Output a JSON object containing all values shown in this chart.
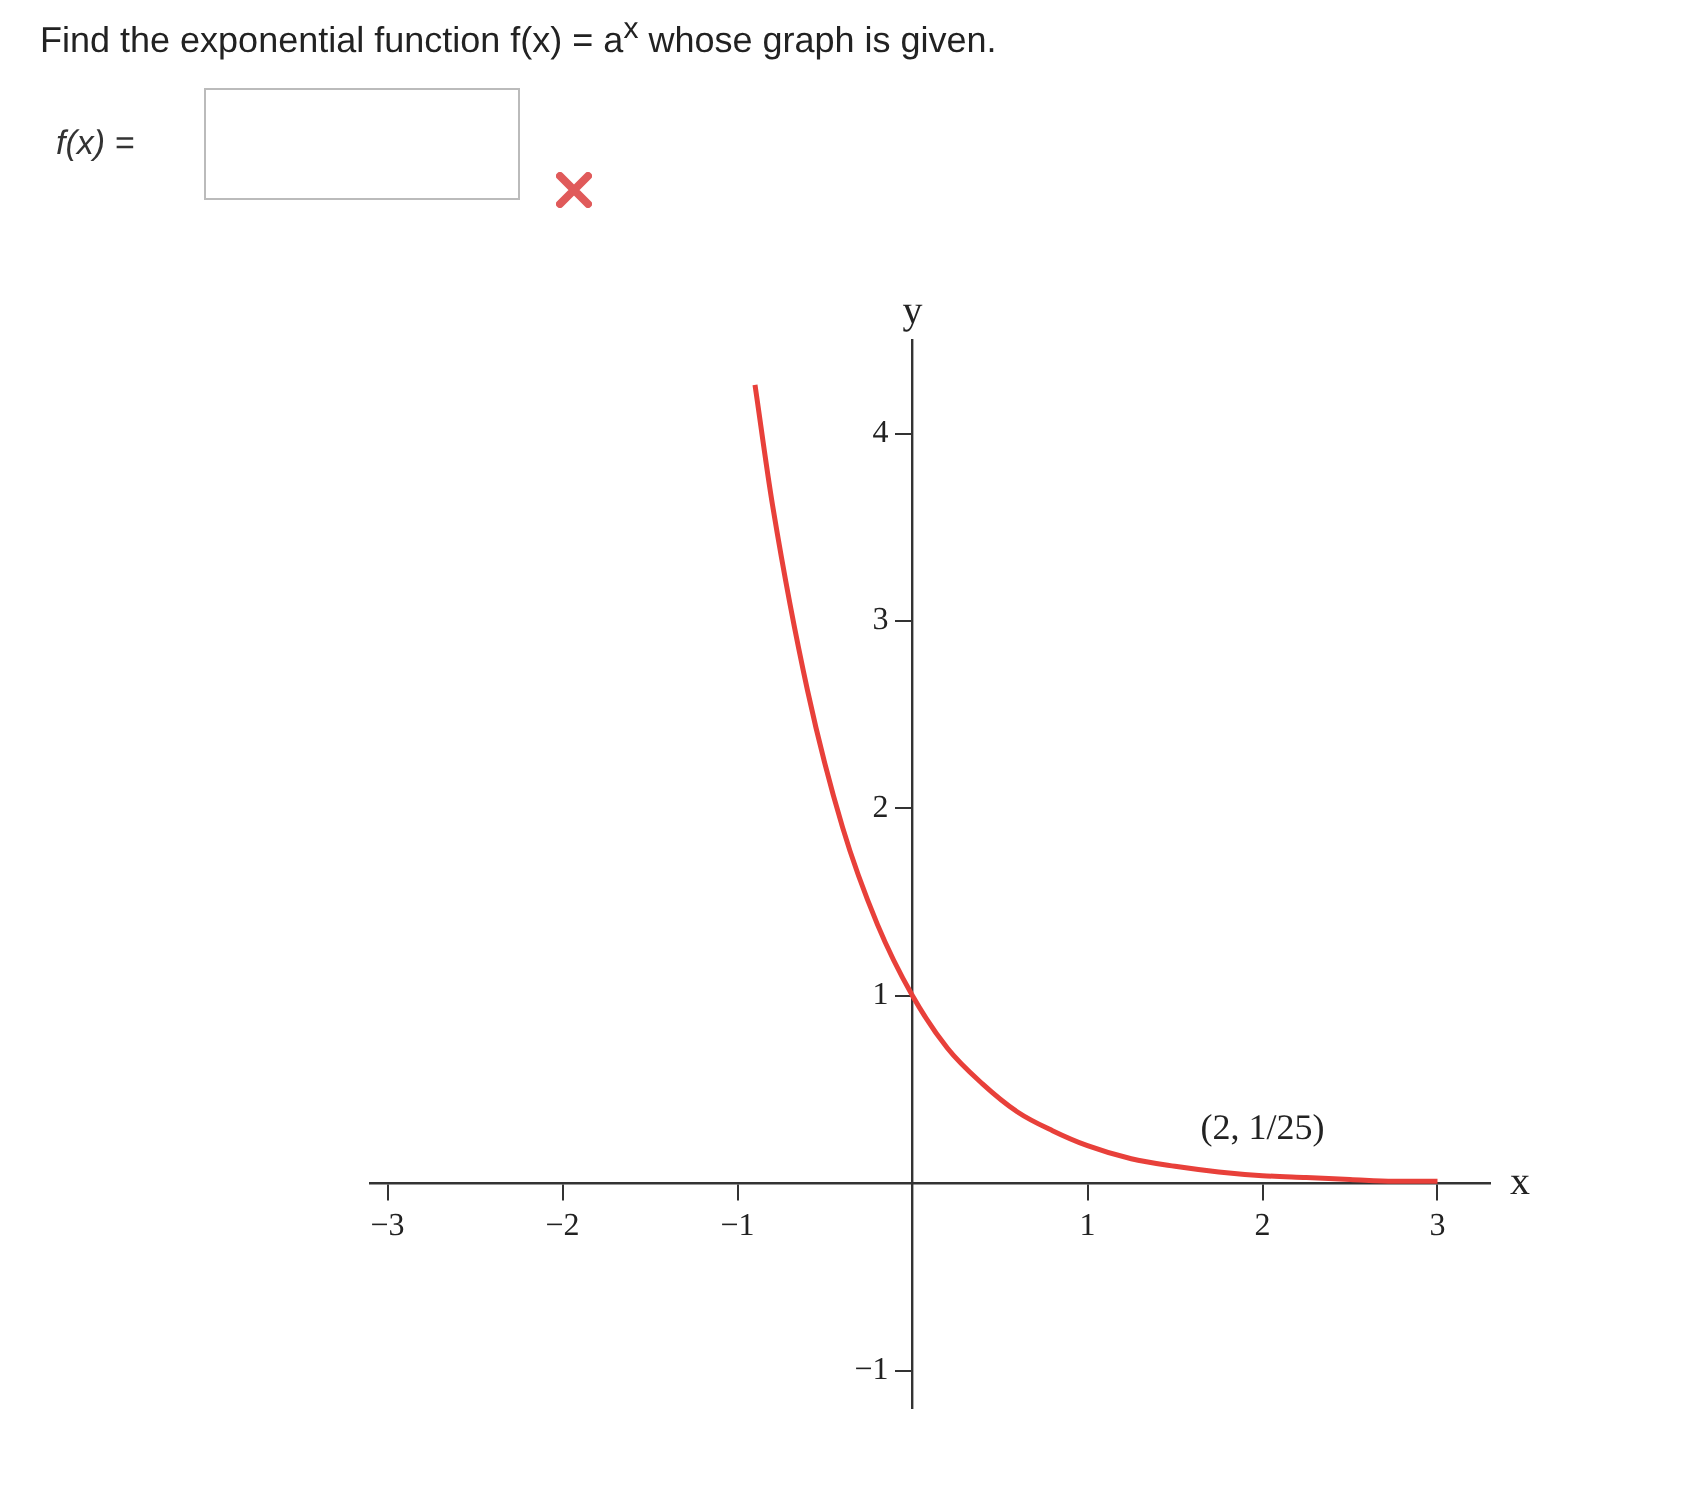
{
  "chart_data": {
    "type": "line",
    "title": "Find the exponential function  f(x) = a$^{x}$  whose graph is given.",
    "xlabel": "x",
    "ylabel": "y",
    "x": [
      -0.9,
      -0.8,
      -0.6,
      -0.4,
      -0.2,
      0,
      0.2,
      0.4,
      0.6,
      0.8,
      1,
      1.25,
      1.5,
      1.75,
      2,
      2.25,
      2.5,
      2.75,
      3
    ],
    "series": [
      {
        "color": "#e8403a",
        "values": [
          4.26,
          3.62,
          2.63,
          1.9,
          1.38,
          1,
          0.72,
          0.53,
          0.38,
          0.28,
          0.2,
          0.13,
          0.09,
          0.06,
          0.04,
          0.03,
          0.02,
          0.01,
          0.01
        ]
      }
    ],
    "xlim": [
      -3.1,
      3.3
    ],
    "ylim": [
      -1.2,
      4.5
    ],
    "xticks": [
      -3,
      -2,
      -1,
      1,
      2,
      3
    ],
    "yticks": [
      -1,
      1,
      2,
      3,
      4
    ],
    "annotations": [
      "f(x) =",
      {
        "text": "(2, 1/25)",
        "x": 2,
        "y": 0.04
      }
    ],
    "grid": false,
    "legend": false,
    "marker": "none",
    "line_style": "solid"
  }
}
